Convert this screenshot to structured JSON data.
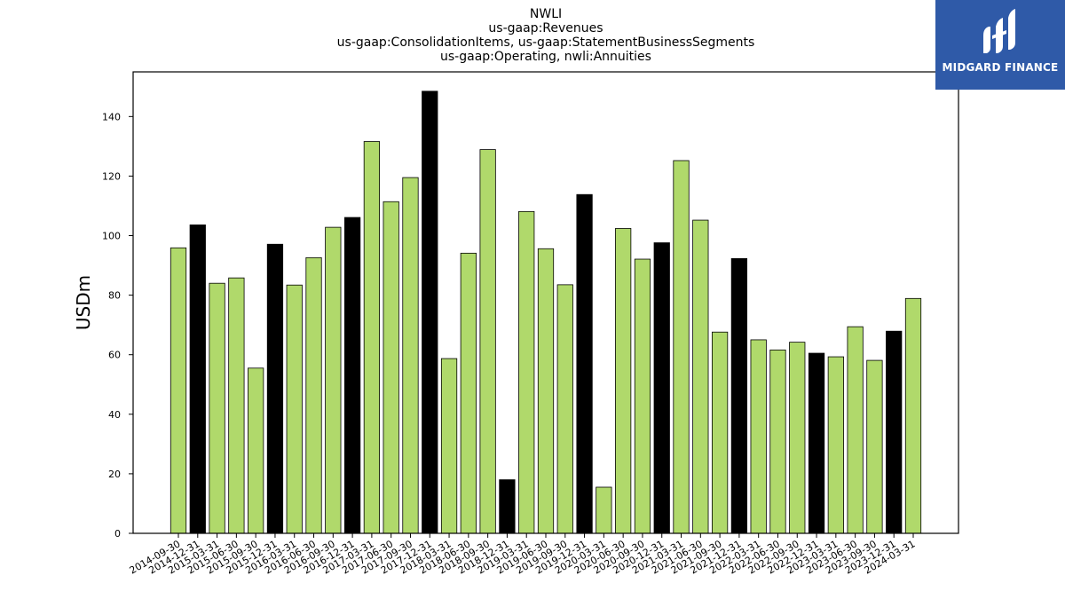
{
  "title_lines": [
    "NWLI",
    "us-gaap:Revenues",
    "us-gaap:ConsolidationItems, us-gaap:StatementBusinessSegments",
    "us-gaap:Operating, nwli:Annuities"
  ],
  "logo": {
    "text": "MIDGARD FINANCE",
    "color": "#2f5aa8",
    "icon": "midgard-logo-icon"
  },
  "colors": {
    "quarterly_bar": "#b0d96b",
    "annual_bar": "#000000",
    "edge": "#000000"
  },
  "chart_data": {
    "type": "bar",
    "title": "NWLI us-gaap:Revenues us-gaap:ConsolidationItems, us-gaap:StatementBusinessSegments us-gaap:Operating, nwli:Annuities",
    "xlabel": "",
    "ylabel": "USDm",
    "ylim": [
      0,
      155
    ],
    "yticks": [
      0,
      20,
      40,
      60,
      80,
      100,
      120,
      140
    ],
    "grid": false,
    "legend": "none",
    "categories": [
      "2014-09-30",
      "2014-12-31",
      "2015-03-31",
      "2015-06-30",
      "2015-09-30",
      "2015-12-31",
      "2016-03-31",
      "2016-06-30",
      "2016-09-30",
      "2016-12-31",
      "2017-03-31",
      "2017-06-30",
      "2017-09-30",
      "2017-12-31",
      "2018-03-31",
      "2018-06-30",
      "2018-09-30",
      "2018-12-31",
      "2019-03-31",
      "2019-06-30",
      "2019-09-30",
      "2019-12-31",
      "2020-03-31",
      "2020-06-30",
      "2020-09-30",
      "2020-12-31",
      "2021-03-31",
      "2021-06-30",
      "2021-09-30",
      "2021-12-31",
      "2022-03-31",
      "2022-06-30",
      "2022-09-30",
      "2022-12-31",
      "2023-03-31",
      "2023-06-30",
      "2023-09-30",
      "2023-12-31",
      "2024-03-31"
    ],
    "values": [
      95.9,
      103.6,
      84.0,
      85.8,
      55.5,
      97.1,
      83.4,
      92.6,
      102.8,
      106.1,
      131.6,
      111.4,
      119.5,
      148.5,
      58.7,
      94.1,
      128.9,
      18.0,
      108.1,
      95.6,
      83.5,
      113.8,
      15.5,
      102.4,
      92.1,
      97.6,
      125.2,
      105.2,
      67.6,
      92.3,
      65.0,
      61.6,
      64.2,
      60.5,
      59.3,
      69.4,
      58.1,
      67.9,
      78.9
    ],
    "annual": [
      false,
      true,
      false,
      false,
      false,
      true,
      false,
      false,
      false,
      true,
      false,
      false,
      false,
      true,
      false,
      false,
      false,
      true,
      false,
      false,
      false,
      true,
      false,
      false,
      false,
      true,
      false,
      false,
      false,
      true,
      false,
      false,
      false,
      true,
      false,
      false,
      false,
      true,
      false
    ]
  }
}
